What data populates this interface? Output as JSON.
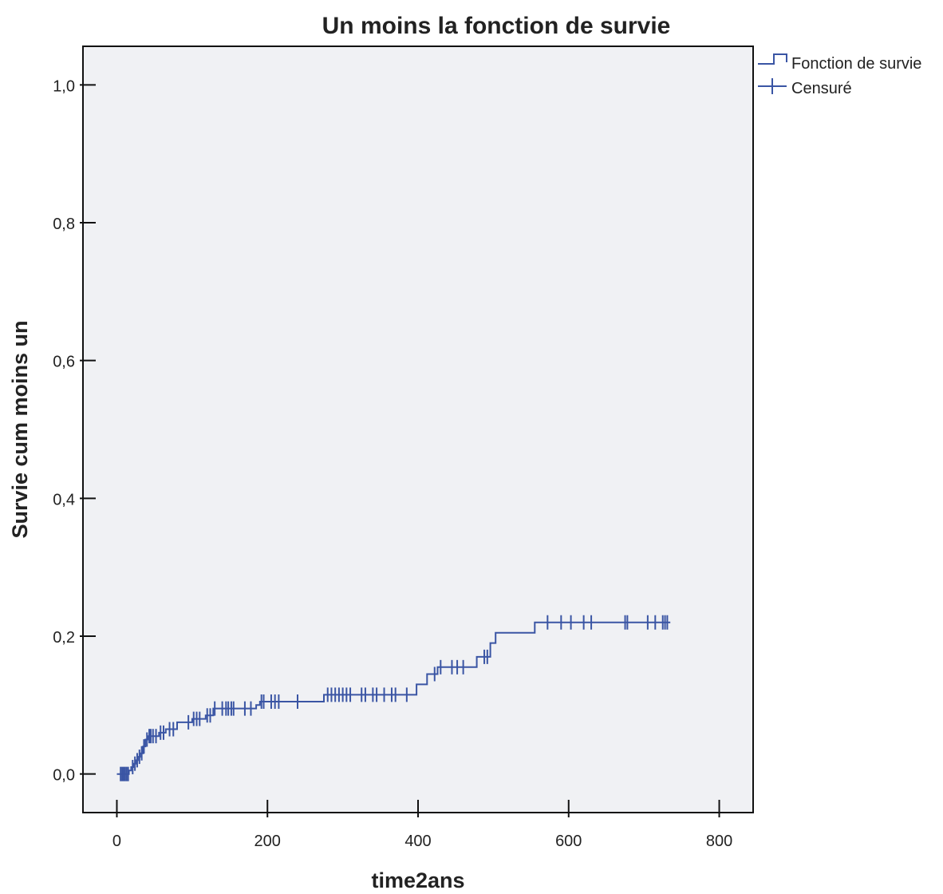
{
  "chart_data": {
    "type": "line",
    "title": "Un moins la fonction de survie",
    "xlabel": "time2ans",
    "ylabel": "Survie cum moins un",
    "xlim": [
      -45,
      845
    ],
    "ylim": [
      -0.056,
      1.056
    ],
    "xticks": [
      0,
      200,
      400,
      600,
      800
    ],
    "xtick_labels": [
      "0",
      "200",
      "400",
      "600",
      "800"
    ],
    "yticks": [
      0.0,
      0.2,
      0.4,
      0.6,
      0.8,
      1.0
    ],
    "ytick_labels": [
      "0,0",
      "0,2",
      "0,4",
      "0,6",
      "0,8",
      "1,0"
    ],
    "grid": false,
    "legend_position": "top-right, outside plot area",
    "plot_background": "#f0f1f4",
    "series_color": "#3a55a4",
    "series": [
      {
        "name": "Fonction de survie",
        "kind": "step",
        "points": [
          [
            0,
            0.0
          ],
          [
            16,
            0.0
          ],
          [
            16,
            0.005
          ],
          [
            19,
            0.005
          ],
          [
            19,
            0.01
          ],
          [
            22,
            0.01
          ],
          [
            22,
            0.015
          ],
          [
            25,
            0.015
          ],
          [
            25,
            0.02
          ],
          [
            28,
            0.02
          ],
          [
            28,
            0.025
          ],
          [
            31,
            0.025
          ],
          [
            31,
            0.03
          ],
          [
            35,
            0.03
          ],
          [
            35,
            0.04
          ],
          [
            38,
            0.04
          ],
          [
            38,
            0.05
          ],
          [
            41,
            0.05
          ],
          [
            41,
            0.055
          ],
          [
            56,
            0.055
          ],
          [
            56,
            0.06
          ],
          [
            65,
            0.06
          ],
          [
            65,
            0.065
          ],
          [
            80,
            0.065
          ],
          [
            80,
            0.075
          ],
          [
            100,
            0.075
          ],
          [
            100,
            0.08
          ],
          [
            118,
            0.08
          ],
          [
            118,
            0.085
          ],
          [
            128,
            0.085
          ],
          [
            128,
            0.095
          ],
          [
            185,
            0.095
          ],
          [
            185,
            0.1
          ],
          [
            190,
            0.1
          ],
          [
            190,
            0.105
          ],
          [
            275,
            0.105
          ],
          [
            275,
            0.115
          ],
          [
            398,
            0.115
          ],
          [
            398,
            0.13
          ],
          [
            412,
            0.13
          ],
          [
            412,
            0.145
          ],
          [
            426,
            0.145
          ],
          [
            426,
            0.155
          ],
          [
            478,
            0.155
          ],
          [
            478,
            0.17
          ],
          [
            496,
            0.17
          ],
          [
            496,
            0.19
          ],
          [
            503,
            0.19
          ],
          [
            503,
            0.205
          ],
          [
            555,
            0.205
          ],
          [
            555,
            0.22
          ],
          [
            735,
            0.22
          ]
        ]
      },
      {
        "name": "Censuré",
        "kind": "censor-marks",
        "points": [
          [
            5,
            0.0
          ],
          [
            7,
            0.0
          ],
          [
            9,
            0.0
          ],
          [
            11,
            0.0
          ],
          [
            13,
            0.0
          ],
          [
            15,
            0.0
          ],
          [
            21,
            0.01
          ],
          [
            24,
            0.015
          ],
          [
            27,
            0.02
          ],
          [
            30,
            0.025
          ],
          [
            33,
            0.03
          ],
          [
            36,
            0.04
          ],
          [
            40,
            0.05
          ],
          [
            43,
            0.055
          ],
          [
            45,
            0.055
          ],
          [
            48,
            0.055
          ],
          [
            52,
            0.055
          ],
          [
            58,
            0.06
          ],
          [
            62,
            0.06
          ],
          [
            70,
            0.065
          ],
          [
            75,
            0.065
          ],
          [
            95,
            0.075
          ],
          [
            102,
            0.08
          ],
          [
            106,
            0.08
          ],
          [
            110,
            0.08
          ],
          [
            120,
            0.085
          ],
          [
            124,
            0.085
          ],
          [
            130,
            0.095
          ],
          [
            140,
            0.095
          ],
          [
            145,
            0.095
          ],
          [
            148,
            0.095
          ],
          [
            152,
            0.095
          ],
          [
            155,
            0.095
          ],
          [
            170,
            0.095
          ],
          [
            178,
            0.095
          ],
          [
            192,
            0.105
          ],
          [
            195,
            0.105
          ],
          [
            205,
            0.105
          ],
          [
            210,
            0.105
          ],
          [
            215,
            0.105
          ],
          [
            240,
            0.105
          ],
          [
            280,
            0.115
          ],
          [
            285,
            0.115
          ],
          [
            290,
            0.115
          ],
          [
            295,
            0.115
          ],
          [
            300,
            0.115
          ],
          [
            305,
            0.115
          ],
          [
            310,
            0.115
          ],
          [
            325,
            0.115
          ],
          [
            330,
            0.115
          ],
          [
            340,
            0.115
          ],
          [
            345,
            0.115
          ],
          [
            355,
            0.115
          ],
          [
            365,
            0.115
          ],
          [
            370,
            0.115
          ],
          [
            385,
            0.115
          ],
          [
            422,
            0.145
          ],
          [
            430,
            0.155
          ],
          [
            445,
            0.155
          ],
          [
            452,
            0.155
          ],
          [
            460,
            0.155
          ],
          [
            488,
            0.17
          ],
          [
            492,
            0.17
          ],
          [
            572,
            0.22
          ],
          [
            590,
            0.22
          ],
          [
            603,
            0.22
          ],
          [
            620,
            0.22
          ],
          [
            630,
            0.22
          ],
          [
            675,
            0.22
          ],
          [
            678,
            0.22
          ],
          [
            705,
            0.22
          ],
          [
            715,
            0.22
          ],
          [
            725,
            0.22
          ],
          [
            728,
            0.22
          ],
          [
            731,
            0.22
          ]
        ]
      }
    ]
  }
}
